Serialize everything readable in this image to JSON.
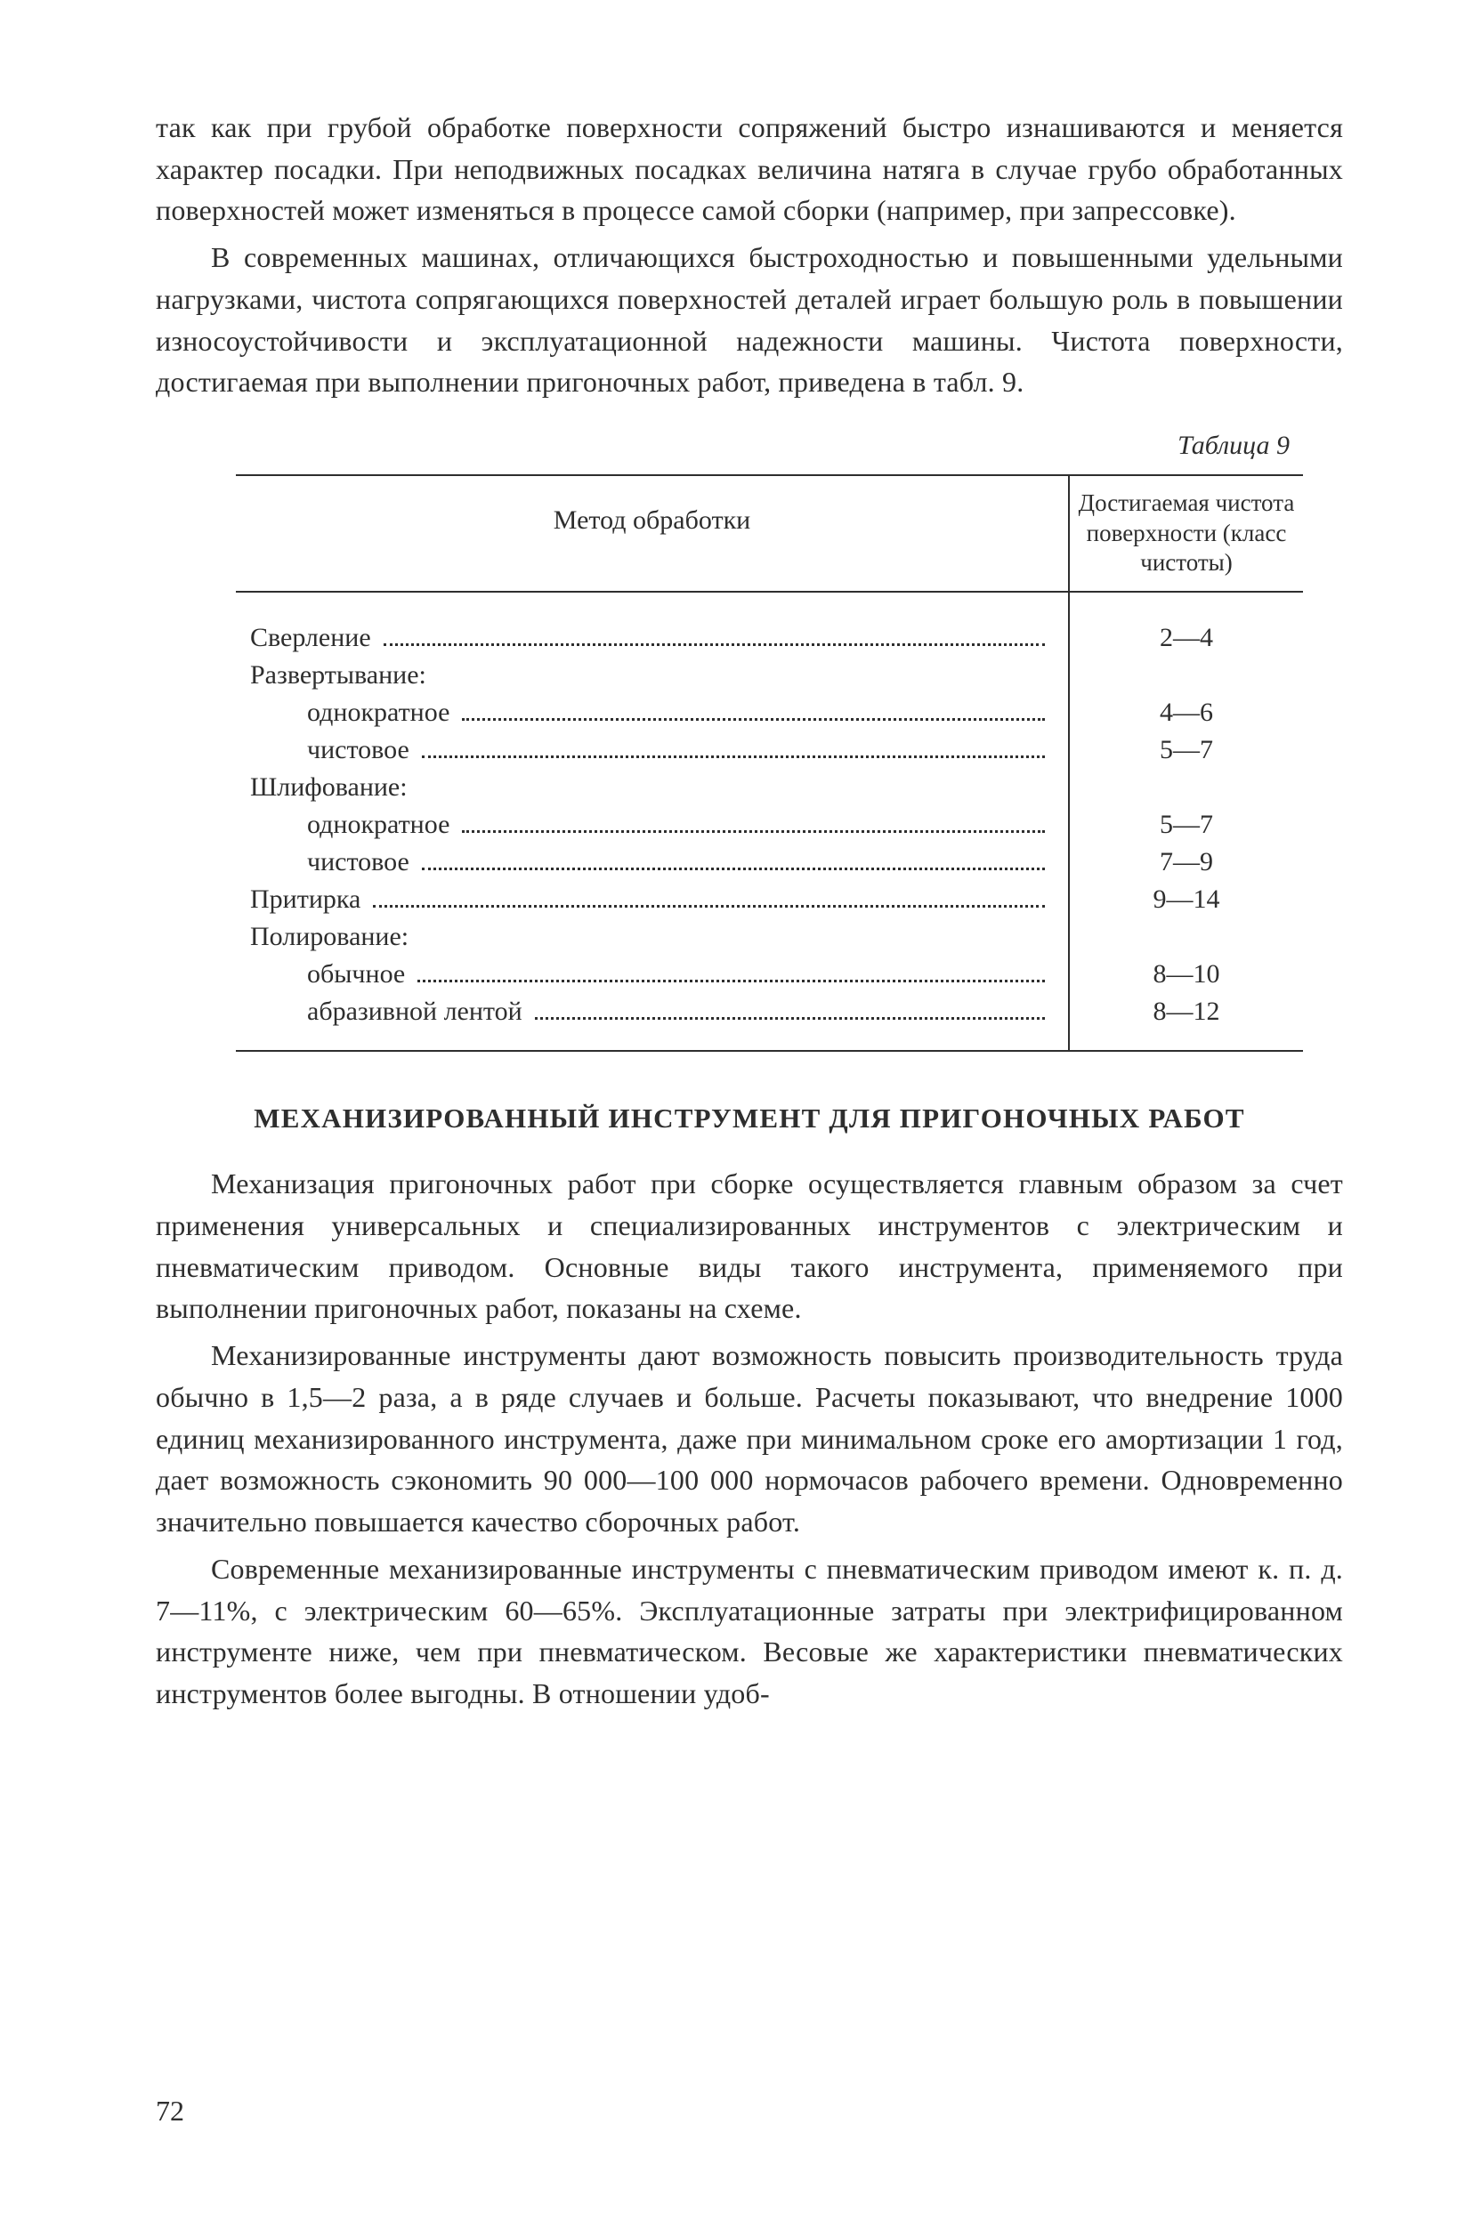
{
  "paragraph1": "так как при грубой обработке поверхности сопряжений быстро изнашиваются и меняется характер посадки. При неподвижных посадках величина натяга в случае грубо обработанных поверхностей может изменяться в процессе самой сборки (например, при запрессовке).",
  "paragraph2": "В современных машинах, отличающихся быстроходностью и повышенными удельными нагрузками, чистота сопрягающихся поверхностей деталей играет большую роль в повышении износоустойчивости и эксплуатационной надежности машины. Чистота поверхности, достигаемая при выполнении пригоночных работ, приведена в табл. 9.",
  "table": {
    "caption": "Таблица 9",
    "head_left": "Метод обработки",
    "head_right": "Достигаемая чистота поверхности (класс чистоты)",
    "rows": {
      "r0": {
        "label": "Сверление",
        "value": "2—4"
      },
      "r1": {
        "label": "Развертывание:",
        "value": ""
      },
      "r2": {
        "label": "однократное",
        "value": "4—6"
      },
      "r3": {
        "label": "чистовое",
        "value": "5—7"
      },
      "r4": {
        "label": "Шлифование:",
        "value": ""
      },
      "r5": {
        "label": "однократное",
        "value": "5—7"
      },
      "r6": {
        "label": "чистовое",
        "value": "7—9"
      },
      "r7": {
        "label": "Притирка",
        "value": "9—14"
      },
      "r8": {
        "label": "Полирование:",
        "value": ""
      },
      "r9": {
        "label": "обычное",
        "value": "8—10"
      },
      "r10": {
        "label": "абразивной лентой",
        "value": "8—12"
      }
    }
  },
  "heading": "МЕХАНИЗИРОВАННЫЙ ИНСТРУМЕНТ ДЛЯ ПРИГОНОЧНЫХ РАБОТ",
  "paragraph3": "Механизация пригоночных работ при сборке осуществляется главным образом за счет применения универсальных и специализированных инструментов с электрическим и пневматическим приводом. Основные виды такого инструмента, применяемого при выполнении пригоночных работ, показаны на схеме.",
  "paragraph4": "Механизированные инструменты дают возможность повысить производительность труда обычно в 1,5—2 раза, а в ряде случаев и больше. Расчеты показывают, что внедрение 1000 единиц механизированного инструмента, даже при минимальном сроке его амортизации 1 год, дает возможность сэкономить 90 000—100 000 нормочасов рабочего времени. Одновременно значительно повышается качество сборочных работ.",
  "paragraph5": "Современные механизированные инструменты с пневматическим приводом имеют к. п. д. 7—11%, с электрическим 60—65%. Эксплуатационные затраты при электрифицированном инструменте ниже, чем при пневматическом. Весовые же характеристики пневматических инструментов более выгодны. В отношении удоб-",
  "page_number": "72"
}
